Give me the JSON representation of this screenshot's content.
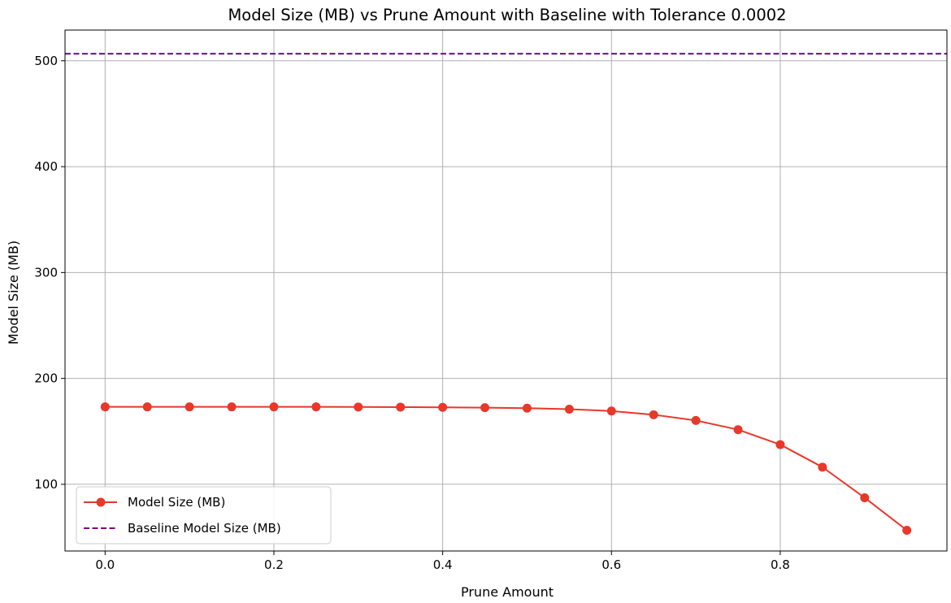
{
  "chart_data": {
    "type": "line",
    "title": "Model Size (MB) vs Prune Amount with Baseline with Tolerance 0.0002",
    "xlabel": "Prune Amount",
    "ylabel": "Model Size (MB)",
    "xlim": [
      -0.0475,
      0.9975
    ],
    "ylim": [
      37,
      529
    ],
    "xticks": [
      0.0,
      0.2,
      0.4,
      0.6,
      0.8
    ],
    "xtick_labels": [
      "0.0",
      "0.2",
      "0.4",
      "0.6",
      "0.8"
    ],
    "yticks": [
      100,
      200,
      300,
      400,
      500
    ],
    "ytick_labels": [
      "100",
      "200",
      "300",
      "400",
      "500"
    ],
    "grid": true,
    "legend_position": "lower-left",
    "series": [
      {
        "name": "Model Size (MB)",
        "style": "line-with-markers",
        "color": "#e8382a",
        "x": [
          0.0,
          0.05,
          0.1,
          0.15,
          0.2,
          0.25,
          0.3,
          0.35,
          0.4,
          0.45,
          0.5,
          0.55,
          0.6,
          0.65,
          0.7,
          0.75,
          0.8,
          0.85,
          0.9,
          0.95
        ],
        "y": [
          173.1,
          173.1,
          173.1,
          173.1,
          173.1,
          173.1,
          173.0,
          172.9,
          172.7,
          172.4,
          171.9,
          170.9,
          169.2,
          165.7,
          160.3,
          151.6,
          137.5,
          116.2,
          87.3,
          56.6
        ]
      },
      {
        "name": "Baseline Model Size (MB)",
        "style": "dashed-horizontal",
        "color": "#800080",
        "y": 506.6
      }
    ]
  }
}
